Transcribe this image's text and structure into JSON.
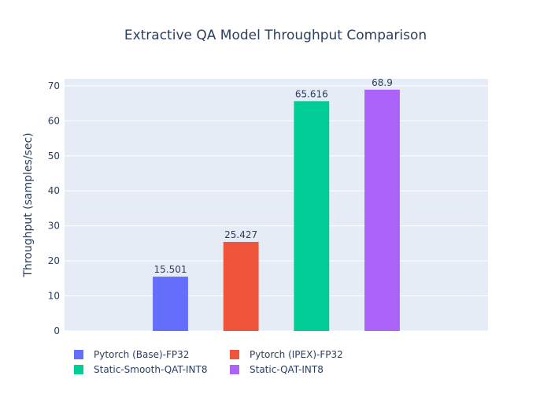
{
  "chart_data": {
    "type": "bar",
    "title": "Extractive QA Model Throughput Comparison",
    "xlabel": "",
    "ylabel": "Throughput (samples/sec)",
    "ylim": [
      0,
      72
    ],
    "yticks": [
      0,
      10,
      20,
      30,
      40,
      50,
      60,
      70
    ],
    "grid": true,
    "legend_position": "bottom",
    "series": [
      {
        "name": "Pytorch (Base)-FP32",
        "value": 15.501,
        "label": "15.501",
        "color": "#636efa"
      },
      {
        "name": "Pytorch (IPEX)-FP32",
        "value": 25.427,
        "label": "25.427",
        "color": "#ef553b"
      },
      {
        "name": "Static-Smooth-QAT-INT8",
        "value": 65.616,
        "label": "65.616",
        "color": "#00cc96"
      },
      {
        "name": "Static-QAT-INT8",
        "value": 68.9,
        "label": "68.9",
        "color": "#ab63fa"
      }
    ]
  }
}
